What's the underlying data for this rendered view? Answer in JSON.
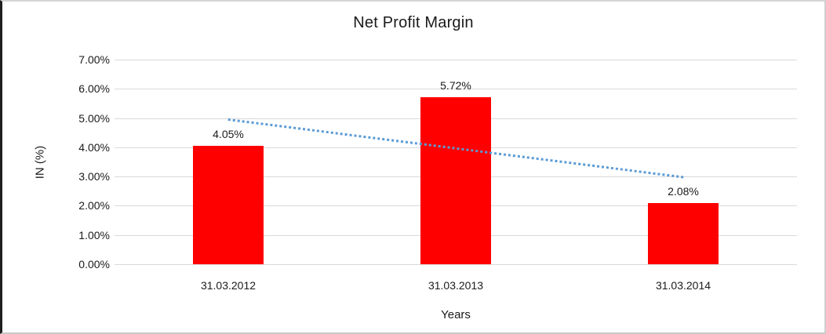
{
  "chart_data": {
    "type": "bar",
    "title": "Net Profit Margin",
    "xlabel": "Years",
    "ylabel": "IN (%)",
    "categories": [
      "31.03.2012",
      "31.03.2013",
      "31.03.2014"
    ],
    "values": [
      4.05,
      5.72,
      2.08
    ],
    "value_labels": [
      "4.05%",
      "5.72%",
      "2.08%"
    ],
    "y_ticks": [
      "0.00%",
      "1.00%",
      "2.00%",
      "3.00%",
      "4.00%",
      "5.00%",
      "6.00%",
      "7.00%"
    ],
    "ylim": [
      0,
      7
    ],
    "grid": "horizontal",
    "legend": "none",
    "colors": {
      "bar": "#FF0000",
      "gridline": "#D9D9D9",
      "text": "#1A1A1A",
      "trendline": "#5B9BD5"
    },
    "trendline": {
      "type": "linear",
      "style": "dotted",
      "color": "#5B9BD5",
      "start_value": 4.94,
      "end_value": 2.97
    }
  }
}
